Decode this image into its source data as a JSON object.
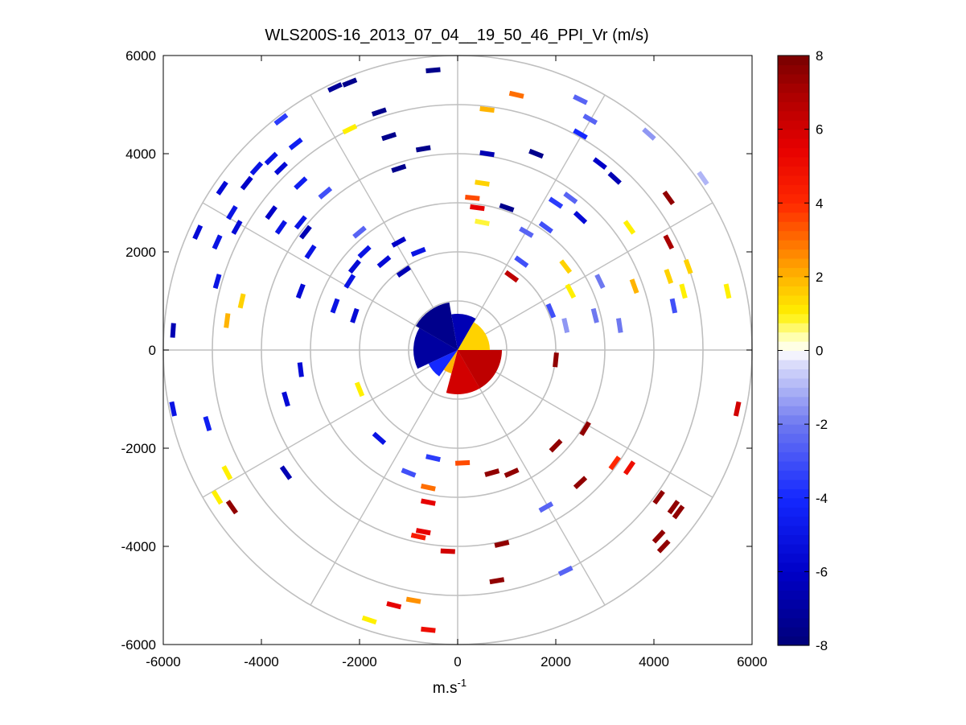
{
  "chart_data": {
    "type": "scatter",
    "subtype": "polar-ppi",
    "title": "WLS200S-16_2013_07_04__19_50_46_PPI_Vr (m/s)",
    "xlabel": "m.s",
    "xlabel_sup": "-1",
    "ylabel": "",
    "xlim": [
      -6000,
      6000
    ],
    "ylim": [
      -6000,
      6000
    ],
    "xticks": [
      "-6000",
      "-4000",
      "-2000",
      "0",
      "2000",
      "4000",
      "6000"
    ],
    "yticks": [
      "6000",
      "4000",
      "2000",
      "0",
      "-2000",
      "-4000",
      "-6000"
    ],
    "xtick_values": [
      -6000,
      -4000,
      -2000,
      0,
      2000,
      4000,
      6000
    ],
    "ytick_values": [
      6000,
      4000,
      2000,
      0,
      -2000,
      -4000,
      -6000
    ],
    "polar_rings": [
      1000,
      2000,
      3000,
      4000,
      5000,
      6000
    ],
    "polar_spokes_deg": [
      0,
      30,
      60,
      90,
      120,
      150,
      180,
      210,
      240,
      270,
      300,
      330
    ],
    "colorbar": {
      "label": "",
      "range": [
        -8,
        8
      ],
      "ticks": [
        "8",
        "6",
        "4",
        "2",
        "0",
        "-2",
        "-4",
        "-6",
        "-8"
      ],
      "tick_values": [
        8,
        6,
        4,
        2,
        0,
        -2,
        -4,
        -6,
        -8
      ]
    },
    "points": [
      {
        "x": -2200,
        "y": 5450,
        "v": -7.5
      },
      {
        "x": -2500,
        "y": 5350,
        "v": -7.2
      },
      {
        "x": -1600,
        "y": 4850,
        "v": -7.5
      },
      {
        "x": -2200,
        "y": 4500,
        "v": 1.0
      },
      {
        "x": -1400,
        "y": 4350,
        "v": -7.5
      },
      {
        "x": -700,
        "y": 4100,
        "v": -7.5
      },
      {
        "x": -1200,
        "y": 3700,
        "v": -7.5
      },
      {
        "x": -3600,
        "y": 4700,
        "v": -3.5
      },
      {
        "x": -3300,
        "y": 4200,
        "v": -4.5
      },
      {
        "x": -3800,
        "y": 3900,
        "v": -5.0
      },
      {
        "x": -4100,
        "y": 3700,
        "v": -5.0
      },
      {
        "x": -4300,
        "y": 3400,
        "v": -6.0
      },
      {
        "x": -3600,
        "y": 3700,
        "v": -5.5
      },
      {
        "x": -3200,
        "y": 3400,
        "v": -4.5
      },
      {
        "x": -2700,
        "y": 3200,
        "v": -3.0
      },
      {
        "x": -4800,
        "y": 3300,
        "v": -5.5
      },
      {
        "x": -4600,
        "y": 2800,
        "v": -5.0
      },
      {
        "x": -4500,
        "y": 2500,
        "v": -5.5
      },
      {
        "x": -3800,
        "y": 2800,
        "v": -6.0
      },
      {
        "x": -3600,
        "y": 2500,
        "v": -5.0
      },
      {
        "x": -3100,
        "y": 2400,
        "v": -6.5
      },
      {
        "x": -3200,
        "y": 2600,
        "v": -5.0
      },
      {
        "x": -5300,
        "y": 2400,
        "v": -5.5
      },
      {
        "x": -4900,
        "y": 2200,
        "v": -5.0
      },
      {
        "x": -3000,
        "y": 2000,
        "v": -5.0
      },
      {
        "x": -2000,
        "y": 2400,
        "v": -2.5
      },
      {
        "x": -1900,
        "y": 2000,
        "v": -5.0
      },
      {
        "x": -2100,
        "y": 1700,
        "v": -5.5
      },
      {
        "x": -2200,
        "y": 1400,
        "v": -5.0
      },
      {
        "x": -1500,
        "y": 1800,
        "v": -5.5
      },
      {
        "x": -1200,
        "y": 2200,
        "v": -6.0
      },
      {
        "x": -1100,
        "y": 1600,
        "v": -6.5
      },
      {
        "x": -800,
        "y": 2000,
        "v": -5.0
      },
      {
        "x": -4900,
        "y": 1400,
        "v": -5.0
      },
      {
        "x": -4400,
        "y": 1000,
        "v": 1.5
      },
      {
        "x": -4700,
        "y": 600,
        "v": 2.0
      },
      {
        "x": -5800,
        "y": 400,
        "v": -6.5
      },
      {
        "x": -3200,
        "y": 1200,
        "v": -5.5
      },
      {
        "x": -2500,
        "y": 900,
        "v": -5.0
      },
      {
        "x": -2100,
        "y": 700,
        "v": -5.5
      },
      {
        "x": -3200,
        "y": -400,
        "v": -5.5
      },
      {
        "x": -3500,
        "y": -1000,
        "v": -5.5
      },
      {
        "x": -5800,
        "y": -1200,
        "v": -5.0
      },
      {
        "x": -5100,
        "y": -1500,
        "v": -4.5
      },
      {
        "x": -2000,
        "y": -800,
        "v": 1.0
      },
      {
        "x": -1600,
        "y": -1800,
        "v": -5.0
      },
      {
        "x": -3500,
        "y": -2500,
        "v": -6.5
      },
      {
        "x": -4700,
        "y": -2500,
        "v": 1.0
      },
      {
        "x": -4900,
        "y": -3000,
        "v": 1.0
      },
      {
        "x": -4600,
        "y": -3200,
        "v": 7.5
      },
      {
        "x": -500,
        "y": 5700,
        "v": -7.5
      },
      {
        "x": 1200,
        "y": 5200,
        "v": 3.0
      },
      {
        "x": 600,
        "y": 4900,
        "v": 2.0
      },
      {
        "x": 2500,
        "y": 5100,
        "v": -2.5
      },
      {
        "x": 2700,
        "y": 4700,
        "v": -2.5
      },
      {
        "x": 2500,
        "y": 4400,
        "v": -4.0
      },
      {
        "x": 1600,
        "y": 4000,
        "v": -7.5
      },
      {
        "x": 2900,
        "y": 3800,
        "v": -6.0
      },
      {
        "x": 3200,
        "y": 3500,
        "v": -6.5
      },
      {
        "x": 3900,
        "y": 4400,
        "v": -1.5
      },
      {
        "x": 5000,
        "y": 3500,
        "v": -1.0
      },
      {
        "x": 4300,
        "y": 3100,
        "v": 7.5
      },
      {
        "x": 600,
        "y": 4000,
        "v": -6.5
      },
      {
        "x": 500,
        "y": 3400,
        "v": 1.5
      },
      {
        "x": 300,
        "y": 3100,
        "v": 3.5
      },
      {
        "x": 400,
        "y": 2900,
        "v": 5.5
      },
      {
        "x": 500,
        "y": 2600,
        "v": 0.8
      },
      {
        "x": 1000,
        "y": 2900,
        "v": -7.5
      },
      {
        "x": 2300,
        "y": 3100,
        "v": -2.5
      },
      {
        "x": 2000,
        "y": 3000,
        "v": -3.5
      },
      {
        "x": 2500,
        "y": 2700,
        "v": -5.5
      },
      {
        "x": 3500,
        "y": 2500,
        "v": 1.0
      },
      {
        "x": 4300,
        "y": 2200,
        "v": 7.0
      },
      {
        "x": 1800,
        "y": 2500,
        "v": -3.0
      },
      {
        "x": 1400,
        "y": 2400,
        "v": -2.5
      },
      {
        "x": 1300,
        "y": 1800,
        "v": -3.0
      },
      {
        "x": 1100,
        "y": 1500,
        "v": 6.5
      },
      {
        "x": 2200,
        "y": 1700,
        "v": 1.5
      },
      {
        "x": 2900,
        "y": 1400,
        "v": -2.0
      },
      {
        "x": 3600,
        "y": 1300,
        "v": 2.0
      },
      {
        "x": 4300,
        "y": 1500,
        "v": 1.5
      },
      {
        "x": 4700,
        "y": 1700,
        "v": 1.5
      },
      {
        "x": 4600,
        "y": 1200,
        "v": 1.0
      },
      {
        "x": 5500,
        "y": 1200,
        "v": 1.0
      },
      {
        "x": 4400,
        "y": 900,
        "v": -3.0
      },
      {
        "x": 2300,
        "y": 1200,
        "v": 1.0
      },
      {
        "x": 2800,
        "y": 700,
        "v": -2.0
      },
      {
        "x": 3300,
        "y": 500,
        "v": -2.0
      },
      {
        "x": 2200,
        "y": 500,
        "v": -1.5
      },
      {
        "x": 1900,
        "y": 800,
        "v": -3.0
      },
      {
        "x": 2000,
        "y": -200,
        "v": 7.5
      },
      {
        "x": 5700,
        "y": -1200,
        "v": 6.0
      },
      {
        "x": 2600,
        "y": -1600,
        "v": 7.5
      },
      {
        "x": 2000,
        "y": -1950,
        "v": 7.5
      },
      {
        "x": 3200,
        "y": -2300,
        "v": 4.0
      },
      {
        "x": 3500,
        "y": -2400,
        "v": 5.0
      },
      {
        "x": 4100,
        "y": -3000,
        "v": 7.5
      },
      {
        "x": 4400,
        "y": -3200,
        "v": 7.5
      },
      {
        "x": 4500,
        "y": -3300,
        "v": 7.5
      },
      {
        "x": 4100,
        "y": -3800,
        "v": 7.5
      },
      {
        "x": 4200,
        "y": -4000,
        "v": 7.5
      },
      {
        "x": 2500,
        "y": -2700,
        "v": 7.5
      },
      {
        "x": 1100,
        "y": -2500,
        "v": 7.5
      },
      {
        "x": 700,
        "y": -2500,
        "v": 7.5
      },
      {
        "x": 100,
        "y": -2300,
        "v": 3.5
      },
      {
        "x": -500,
        "y": -2200,
        "v": -3.5
      },
      {
        "x": -1000,
        "y": -2500,
        "v": -3.0
      },
      {
        "x": -600,
        "y": -2800,
        "v": 3.0
      },
      {
        "x": -600,
        "y": -3100,
        "v": 5.5
      },
      {
        "x": -800,
        "y": -3800,
        "v": 4.5
      },
      {
        "x": -700,
        "y": -3700,
        "v": 5.5
      },
      {
        "x": -200,
        "y": -4100,
        "v": 6.0
      },
      {
        "x": 900,
        "y": -3950,
        "v": 7.5
      },
      {
        "x": 1800,
        "y": -3200,
        "v": -2.5
      },
      {
        "x": 2200,
        "y": -4500,
        "v": -2.5
      },
      {
        "x": 800,
        "y": -4700,
        "v": 7.5
      },
      {
        "x": -1300,
        "y": -5200,
        "v": 5.5
      },
      {
        "x": -900,
        "y": -5100,
        "v": 2.5
      },
      {
        "x": -1800,
        "y": -5500,
        "v": 1.0
      },
      {
        "x": -600,
        "y": -5700,
        "v": 5.0
      }
    ]
  }
}
